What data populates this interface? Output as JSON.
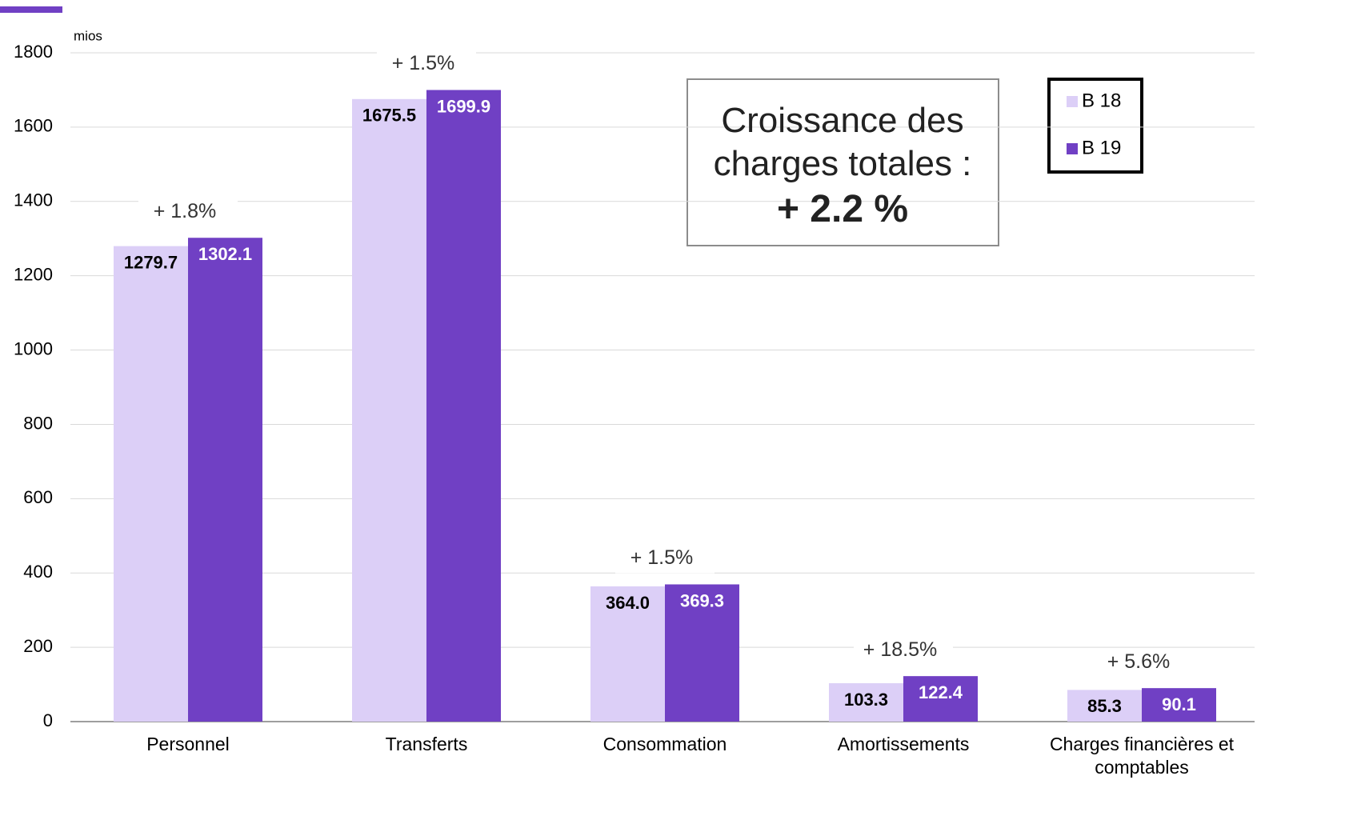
{
  "chart_data": {
    "type": "bar",
    "unit": "mios",
    "categories": [
      "Personnel",
      "Transferts",
      "Consommation",
      "Amortissements",
      "Charges financières et comptables"
    ],
    "series": [
      {
        "name": "B 18",
        "color": "#dccff7",
        "values": [
          1279.7,
          1675.5,
          364.0,
          103.3,
          85.3
        ],
        "value_labels": [
          "1279.7",
          "1675.5",
          "364.0",
          "103.3",
          "85.3"
        ]
      },
      {
        "name": "B 19",
        "color": "#7040c4",
        "values": [
          1302.1,
          1699.9,
          369.3,
          122.4,
          90.1
        ],
        "value_labels": [
          "1302.1",
          "1699.9",
          "369.3",
          "122.4",
          "90.1"
        ]
      }
    ],
    "growth_labels": [
      "+ 1.8%",
      "+ 1.5%",
      "+ 1.5%",
      "+ 18.5%",
      "+ 5.6%"
    ],
    "box_text": "Croissance des charges totales :",
    "box_value": "+ 2.2 %",
    "ylim": [
      0,
      1800
    ],
    "yticks": [
      0,
      200,
      400,
      600,
      800,
      1000,
      1200,
      1400,
      1600,
      1800
    ],
    "grid": true
  }
}
